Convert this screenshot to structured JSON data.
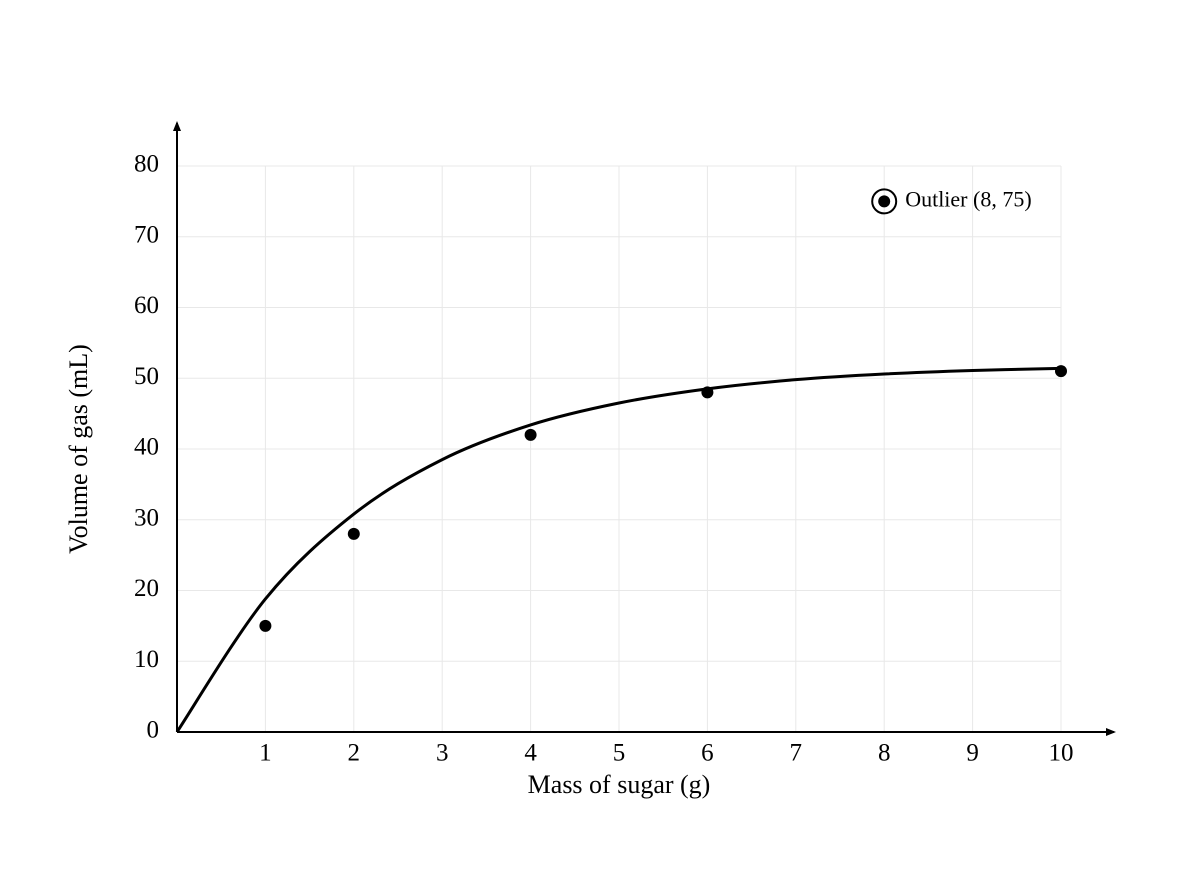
{
  "chart_data": {
    "type": "scatter",
    "x_label": "Mass of sugar (g)",
    "y_label": "Volume of gas (mL)",
    "xlim": [
      0,
      10
    ],
    "ylim": [
      0,
      80
    ],
    "xticks": [
      1,
      2,
      3,
      4,
      5,
      6,
      7,
      8,
      9,
      10
    ],
    "yticks": [
      0,
      10,
      20,
      30,
      40,
      50,
      60,
      70,
      80
    ],
    "grid": true,
    "series": [
      {
        "type": "scatter",
        "marker": "dot",
        "color": "#000000",
        "x": [
          1,
          2,
          4,
          6,
          10
        ],
        "values": [
          15,
          28,
          42,
          48,
          51
        ]
      },
      {
        "type": "scatter",
        "marker": "ring",
        "color": "#000000",
        "x": [
          8
        ],
        "values": [
          75
        ],
        "annotation": "Outlier (8, 75)"
      },
      {
        "type": "line",
        "color": "#000000",
        "x": [
          0,
          1,
          2,
          3,
          4,
          5,
          6,
          7,
          8,
          9,
          10
        ],
        "values": [
          0,
          18.8,
          30.8,
          38.5,
          43.4,
          46.5,
          48.5,
          49.8,
          50.6,
          51.1,
          51.4
        ]
      }
    ]
  }
}
